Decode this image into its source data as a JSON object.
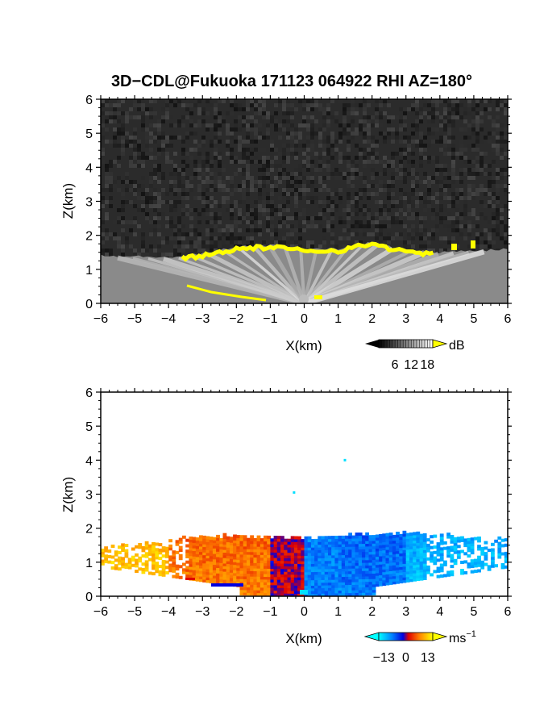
{
  "title": "3D−CDL@Fukuoka 171123 064922 RHI AZ=180°",
  "chart_data": [
    {
      "type": "heatmap",
      "quantity": "backscatter intensity",
      "xlabel": "X(km)",
      "ylabel": "Z(km)",
      "xlim": [
        -6,
        6
      ],
      "ylim": [
        0,
        6
      ],
      "x_ticks": [
        "−6",
        "−5",
        "−4",
        "−3",
        "−2",
        "−1",
        "0",
        "1",
        "2",
        "3",
        "4",
        "5",
        "6"
      ],
      "y_ticks": [
        "0",
        "1",
        "2",
        "3",
        "4",
        "5",
        "6"
      ],
      "colormap": "grayscale with yellow above top value",
      "colorbar": {
        "unit": "dB",
        "ticks": [
          "6",
          "12",
          "18"
        ],
        "values": [
          6,
          12,
          18
        ],
        "range": [
          0,
          20
        ]
      },
      "background_noise": "dark gray speckle",
      "layer_top_km": [
        {
          "x": -6,
          "z": 1.4
        },
        {
          "x": -4,
          "z": 1.35
        },
        {
          "x": -3,
          "z": 1.45
        },
        {
          "x": -2,
          "z": 1.65
        },
        {
          "x": -1,
          "z": 1.7
        },
        {
          "x": 0,
          "z": 1.6
        },
        {
          "x": 1,
          "z": 1.6
        },
        {
          "x": 2,
          "z": 1.8
        },
        {
          "x": 3,
          "z": 1.55
        },
        {
          "x": 4,
          "z": 1.5
        },
        {
          "x": 5,
          "z": 1.55
        },
        {
          "x": 6,
          "z": 1.6
        }
      ],
      "high_echo_color": "#ffff00"
    },
    {
      "type": "heatmap",
      "quantity": "radial velocity",
      "xlabel": "X(km)",
      "ylabel": "Z(km)",
      "xlim": [
        -6,
        6
      ],
      "ylim": [
        0,
        6
      ],
      "x_ticks": [
        "−6",
        "−5",
        "−4",
        "−3",
        "−2",
        "−1",
        "0",
        "1",
        "2",
        "3",
        "4",
        "5",
        "6"
      ],
      "y_ticks": [
        "0",
        "1",
        "2",
        "3",
        "4",
        "5",
        "6"
      ],
      "colormap": "cyan-blue-red-orange-yellow",
      "colorbar": {
        "unit": "ms",
        "unit_exp": "−1",
        "ticks": [
          "−13",
          "0",
          "13"
        ],
        "values": [
          -13,
          0,
          13
        ],
        "range": [
          -16,
          16
        ]
      },
      "layer_top_km": [
        {
          "x": -6,
          "z": 1.45
        },
        {
          "x": -3,
          "z": 1.75
        },
        {
          "x": 0,
          "z": 1.7
        },
        {
          "x": 3,
          "z": 1.85
        },
        {
          "x": 6,
          "z": 1.65
        }
      ],
      "velocity_regime": [
        {
          "x_range": [
            -6,
            -4
          ],
          "velocity_ms": 13
        },
        {
          "x_range": [
            -4,
            -1
          ],
          "velocity_ms": 8
        },
        {
          "x_range": [
            -1,
            0
          ],
          "velocity_ms": 1
        },
        {
          "x_range": [
            0,
            3
          ],
          "velocity_ms": -8
        },
        {
          "x_range": [
            3,
            6
          ],
          "velocity_ms": -12
        }
      ],
      "isolated_points": [
        {
          "x": 1.2,
          "z": 4.0,
          "velocity_ms": -14
        },
        {
          "x": -0.3,
          "z": 3.05,
          "velocity_ms": -14
        }
      ]
    }
  ]
}
